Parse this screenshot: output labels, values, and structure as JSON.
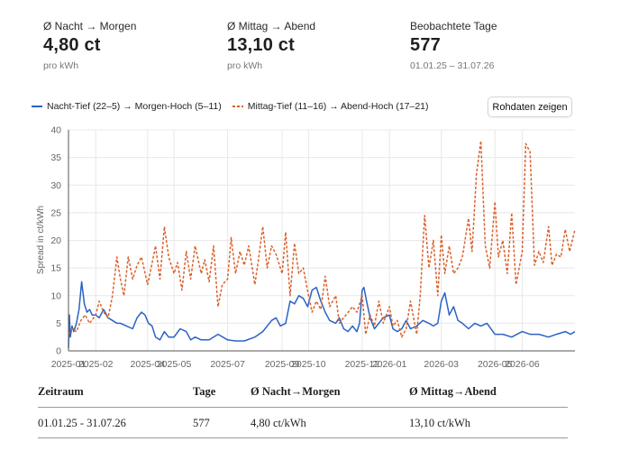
{
  "stats": [
    {
      "label": "Ø Nacht → Morgen",
      "value": "4,80 ct",
      "sub": "pro kWh"
    },
    {
      "label": "Ø Mittag → Abend",
      "value": "13,10 ct",
      "sub": "pro kWh"
    },
    {
      "label": "Beobachtete Tage",
      "value": "577",
      "sub": "01.01.25 – 31.07.26"
    }
  ],
  "legend": {
    "series1": "Nacht-Tief (22–5) → Morgen-Hoch (5–11)",
    "series2": "Mittag-Tief (11–16) → Abend-Hoch (17–21)"
  },
  "raw_button_label": "Rohdaten zeigen",
  "table": {
    "headers": [
      "Zeitraum",
      "Tage",
      "Ø Nacht→Morgen",
      "Ø Mittag→Abend"
    ],
    "row": [
      "01.01.25 - 31.07.26",
      "577",
      "4,80 ct/kWh",
      "13,10 ct/kWh"
    ]
  },
  "colors": {
    "series1": "#2b63c4",
    "series2": "#d9612b",
    "grid": "#e8e8e8",
    "axis": "#666666"
  },
  "chart_data": {
    "type": "line",
    "ylabel": "Spread in ct/kWh",
    "ylim": [
      0,
      40
    ],
    "yticks": [
      0,
      5,
      10,
      15,
      20,
      25,
      30,
      35,
      40
    ],
    "xlim": [
      "2025-01-01",
      "2026-07-31"
    ],
    "xticks": [
      "2025-01",
      "2025-02",
      "2025-04",
      "2025-05",
      "2025-07",
      "2025-09",
      "2025-10",
      "2025-12",
      "2026-01",
      "2026-03",
      "2026-05",
      "2026-06"
    ],
    "grid": true,
    "legend_position": "top-left",
    "series": [
      {
        "name": "Nacht-Tief (22–5) → Morgen-Hoch (5–11)",
        "style": "solid",
        "x": [
          "2025-01-01",
          "2025-01-02",
          "2025-01-03",
          "2025-01-05",
          "2025-01-07",
          "2025-01-10",
          "2025-01-13",
          "2025-01-16",
          "2025-01-19",
          "2025-01-22",
          "2025-01-25",
          "2025-01-28",
          "2025-02-01",
          "2025-02-05",
          "2025-02-10",
          "2025-02-15",
          "2025-02-20",
          "2025-02-25",
          "2025-03-01",
          "2025-03-08",
          "2025-03-15",
          "2025-03-20",
          "2025-03-25",
          "2025-03-29",
          "2025-04-02",
          "2025-04-06",
          "2025-04-10",
          "2025-04-15",
          "2025-04-20",
          "2025-04-25",
          "2025-05-01",
          "2025-05-08",
          "2025-05-15",
          "2025-05-20",
          "2025-05-25",
          "2025-06-01",
          "2025-06-10",
          "2025-06-20",
          "2025-07-01",
          "2025-07-10",
          "2025-07-20",
          "2025-08-01",
          "2025-08-10",
          "2025-08-20",
          "2025-08-25",
          "2025-08-30",
          "2025-09-05",
          "2025-09-10",
          "2025-09-15",
          "2025-09-20",
          "2025-09-25",
          "2025-09-30",
          "2025-10-05",
          "2025-10-10",
          "2025-10-15",
          "2025-10-20",
          "2025-10-25",
          "2025-11-01",
          "2025-11-05",
          "2025-11-10",
          "2025-11-15",
          "2025-11-20",
          "2025-11-25",
          "2025-11-28",
          "2025-12-01",
          "2025-12-03",
          "2025-12-06",
          "2025-12-10",
          "2025-12-15",
          "2025-12-20",
          "2025-12-25",
          "2026-01-01",
          "2026-01-05",
          "2026-01-10",
          "2026-01-15",
          "2026-01-20",
          "2026-01-25",
          "2026-02-01",
          "2026-02-08",
          "2026-02-15",
          "2026-02-20",
          "2026-02-25",
          "2026-03-01",
          "2026-03-05",
          "2026-03-10",
          "2026-03-15",
          "2026-03-20",
          "2026-03-25",
          "2026-04-01",
          "2026-04-08",
          "2026-04-15",
          "2026-04-22",
          "2026-05-01",
          "2026-05-10",
          "2026-05-20",
          "2026-06-01",
          "2026-06-10",
          "2026-06-20",
          "2026-07-01",
          "2026-07-10",
          "2026-07-20",
          "2026-07-26",
          "2026-07-31"
        ],
        "y": [
          0.5,
          6.5,
          2.5,
          4.5,
          3.5,
          5.0,
          7.5,
          12.5,
          8.5,
          7.0,
          7.5,
          6.5,
          6.5,
          6.0,
          7.5,
          6.0,
          5.5,
          5.0,
          5.0,
          4.5,
          4.0,
          6.0,
          7.0,
          6.5,
          5.0,
          4.5,
          2.5,
          2.0,
          3.5,
          2.5,
          2.5,
          4.0,
          3.5,
          2.0,
          2.5,
          2.0,
          2.0,
          3.0,
          2.0,
          1.8,
          1.8,
          2.5,
          3.5,
          5.5,
          6.0,
          4.5,
          5.0,
          9.0,
          8.5,
          10.0,
          9.5,
          8.0,
          11.0,
          11.5,
          9.0,
          7.0,
          5.5,
          5.0,
          6.0,
          4.0,
          3.5,
          4.5,
          3.5,
          5.0,
          11.0,
          11.5,
          9.0,
          6.0,
          4.0,
          5.0,
          6.0,
          6.5,
          4.0,
          3.5,
          4.0,
          5.5,
          4.0,
          4.5,
          5.5,
          5.0,
          4.5,
          5.0,
          9.0,
          10.5,
          6.5,
          8.0,
          5.5,
          5.0,
          4.0,
          5.0,
          4.5,
          5.0,
          3.0,
          3.0,
          2.5,
          3.5,
          3.0,
          3.0,
          2.5,
          3.0,
          3.5,
          3.0,
          3.5
        ]
      },
      {
        "name": "Mittag-Tief (11–16) → Abend-Hoch (17–21)",
        "style": "dashed",
        "x": [
          "2025-01-01",
          "2025-01-05",
          "2025-01-10",
          "2025-01-15",
          "2025-01-20",
          "2025-01-25",
          "2025-02-01",
          "2025-02-05",
          "2025-02-10",
          "2025-02-15",
          "2025-02-20",
          "2025-02-25",
          "2025-03-01",
          "2025-03-05",
          "2025-03-10",
          "2025-03-15",
          "2025-03-20",
          "2025-03-25",
          "2025-04-01",
          "2025-04-05",
          "2025-04-10",
          "2025-04-15",
          "2025-04-20",
          "2025-04-25",
          "2025-05-01",
          "2025-05-05",
          "2025-05-10",
          "2025-05-15",
          "2025-05-20",
          "2025-05-25",
          "2025-06-01",
          "2025-06-05",
          "2025-06-10",
          "2025-06-15",
          "2025-06-20",
          "2025-06-25",
          "2025-07-01",
          "2025-07-05",
          "2025-07-10",
          "2025-07-15",
          "2025-07-20",
          "2025-07-25",
          "2025-08-01",
          "2025-08-05",
          "2025-08-10",
          "2025-08-15",
          "2025-08-20",
          "2025-08-25",
          "2025-09-01",
          "2025-09-05",
          "2025-09-10",
          "2025-09-15",
          "2025-09-20",
          "2025-09-25",
          "2025-10-01",
          "2025-10-05",
          "2025-10-10",
          "2025-10-15",
          "2025-10-20",
          "2025-10-25",
          "2025-11-01",
          "2025-11-05",
          "2025-11-10",
          "2025-11-15",
          "2025-11-20",
          "2025-11-25",
          "2025-12-01",
          "2025-12-05",
          "2025-12-10",
          "2025-12-15",
          "2025-12-20",
          "2025-12-25",
          "2026-01-01",
          "2026-01-05",
          "2026-01-10",
          "2026-01-15",
          "2026-01-20",
          "2026-01-25",
          "2026-02-01",
          "2026-02-05",
          "2026-02-10",
          "2026-02-15",
          "2026-02-20",
          "2026-02-25",
          "2026-03-01",
          "2026-03-05",
          "2026-03-10",
          "2026-03-15",
          "2026-03-20",
          "2026-03-25",
          "2026-04-01",
          "2026-04-05",
          "2026-04-10",
          "2026-04-15",
          "2026-04-20",
          "2026-04-25",
          "2026-05-01",
          "2026-05-05",
          "2026-05-10",
          "2026-05-15",
          "2026-05-20",
          "2026-05-25",
          "2026-06-01",
          "2026-06-05",
          "2026-06-10",
          "2026-06-15",
          "2026-06-20",
          "2026-06-25",
          "2026-07-01",
          "2026-07-05",
          "2026-07-10",
          "2026-07-15",
          "2026-07-20",
          "2026-07-25",
          "2026-07-31"
        ],
        "y": [
          3.0,
          4.0,
          3.5,
          5.5,
          6.5,
          5.0,
          6.5,
          9.0,
          7.0,
          6.0,
          10.0,
          17.0,
          13.0,
          10.0,
          17.0,
          13.0,
          15.5,
          17.0,
          12.0,
          15.0,
          19.0,
          13.0,
          22.5,
          17.0,
          14.0,
          16.0,
          11.0,
          18.0,
          13.0,
          19.0,
          14.0,
          16.5,
          12.5,
          19.0,
          8.0,
          12.0,
          13.0,
          20.5,
          14.0,
          18.0,
          15.5,
          19.0,
          12.0,
          16.5,
          22.5,
          15.0,
          19.0,
          17.5,
          14.0,
          21.5,
          10.0,
          19.5,
          14.0,
          15.0,
          10.0,
          7.0,
          9.0,
          7.5,
          13.5,
          8.0,
          10.0,
          5.0,
          6.0,
          7.0,
          8.0,
          7.0,
          10.0,
          3.0,
          6.5,
          4.5,
          9.0,
          5.0,
          8.0,
          4.5,
          5.5,
          2.5,
          4.0,
          9.0,
          3.0,
          10.0,
          24.5,
          15.0,
          20.0,
          10.0,
          21.0,
          14.0,
          19.0,
          14.0,
          15.0,
          17.0,
          24.0,
          18.0,
          32.0,
          38.0,
          19.0,
          15.0,
          27.0,
          17.0,
          20.0,
          14.0,
          25.0,
          12.0,
          18.0,
          37.5,
          36.0,
          15.5,
          18.0,
          16.0,
          22.5,
          15.5,
          17.5,
          17.0,
          22.0,
          18.0,
          22.0
        ]
      }
    ]
  }
}
